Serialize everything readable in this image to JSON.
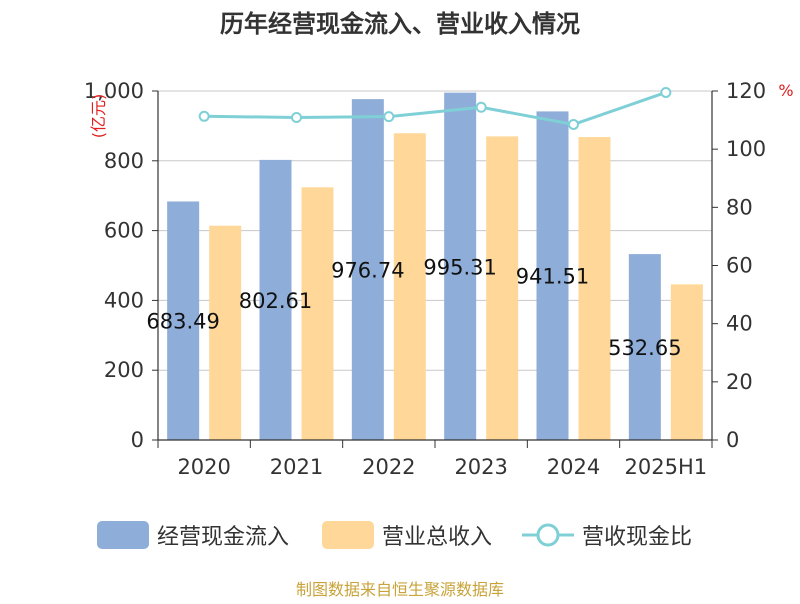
{
  "chart_data": {
    "type": "bar",
    "title": "历年经营现金流入、营业收入情况",
    "categories": [
      "2020",
      "2021",
      "2022",
      "2023",
      "2024",
      "2025H1"
    ],
    "series": [
      {
        "name": "经营现金流入",
        "kind": "bar",
        "axis": "left",
        "color": "#8eadd9",
        "values": [
          683.49,
          802.61,
          976.74,
          995.31,
          941.51,
          532.65
        ],
        "labels": [
          "683.49",
          "802.61",
          "976.74",
          "995.31",
          "941.51",
          "532.65"
        ]
      },
      {
        "name": "营业总收入",
        "kind": "bar",
        "axis": "left",
        "color": "#ffd899",
        "values": [
          614,
          724,
          879,
          870,
          868,
          446
        ]
      },
      {
        "name": "营收现金比",
        "kind": "line",
        "axis": "right",
        "color": "#7fd0d6",
        "values": [
          111.3,
          110.9,
          111.2,
          114.4,
          108.5,
          119.5
        ]
      }
    ],
    "y_left": {
      "label": "(亿元)",
      "ticks": [
        "0",
        "200",
        "400",
        "600",
        "800",
        "1,000"
      ],
      "min": 0,
      "max": 1000
    },
    "y_right": {
      "label": "%",
      "ticks": [
        "0",
        "20",
        "40",
        "60",
        "80",
        "100",
        "120"
      ],
      "min": 0,
      "max": 120
    },
    "grid": true,
    "legend_position": "bottom",
    "source": "制图数据来自恒生聚源数据库"
  }
}
